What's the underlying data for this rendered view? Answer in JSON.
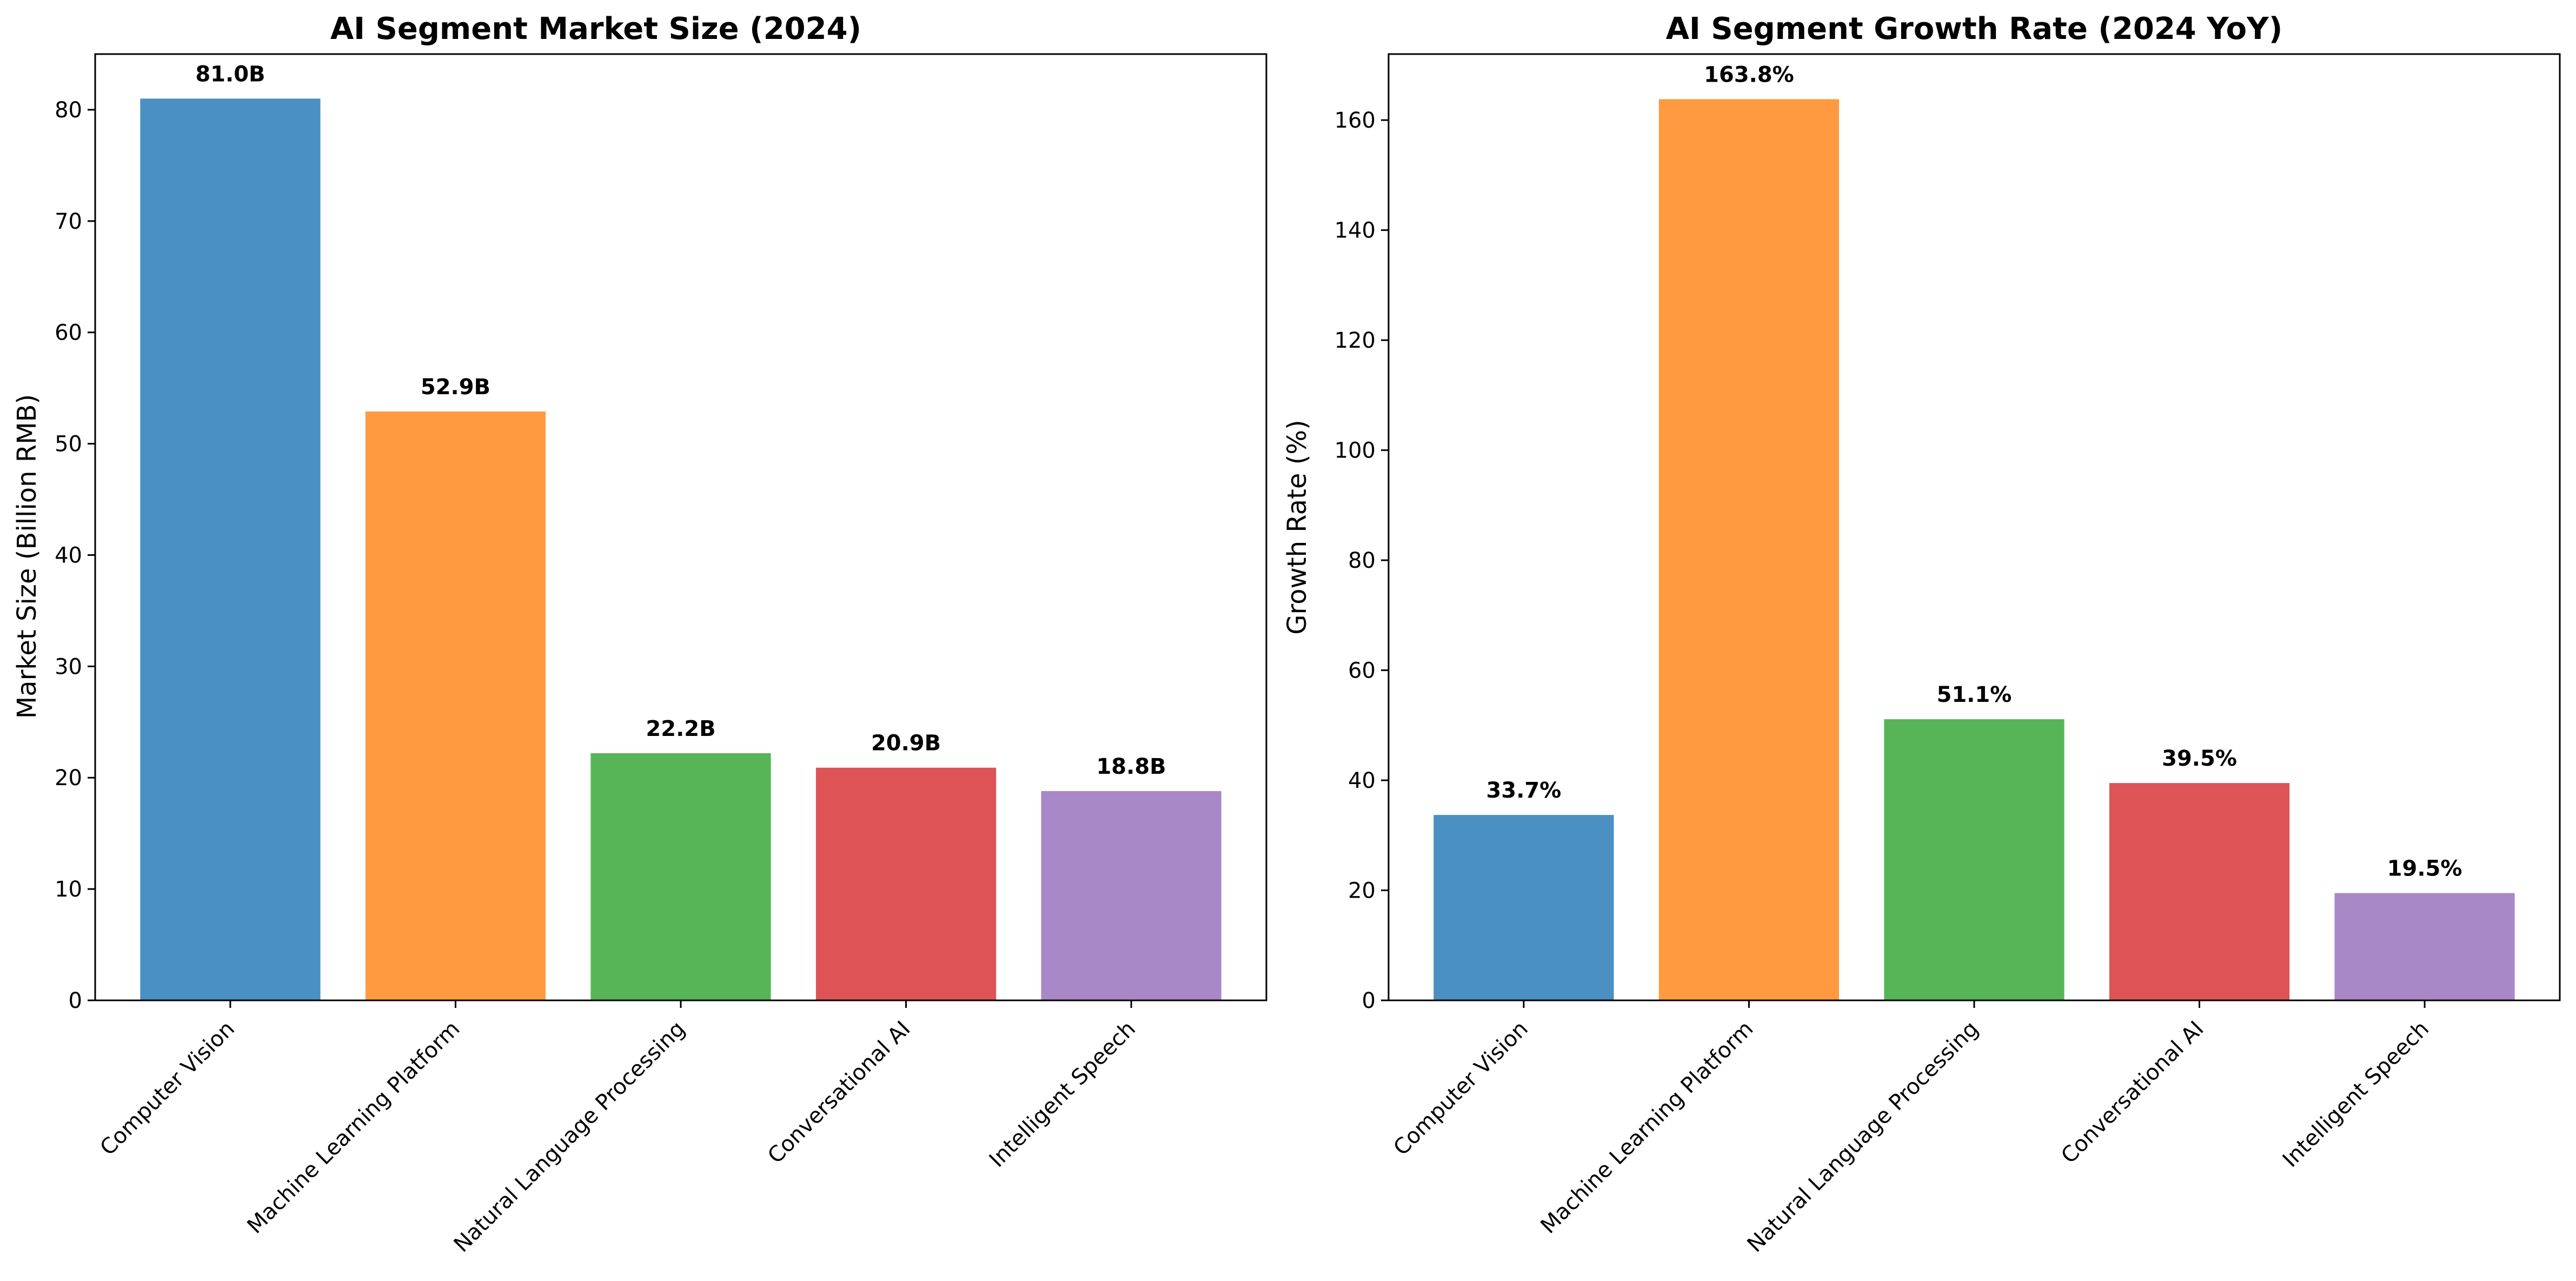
{
  "chart_data": [
    {
      "type": "bar",
      "title": "AI Segment Market Size (2024)",
      "xlabel": "",
      "ylabel": "Market Size (Billion RMB)",
      "categories": [
        "Computer Vision",
        "Machine Learning Platform",
        "Natural Language Processing",
        "Conversational AI",
        "Intelligent Speech"
      ],
      "values": [
        81.0,
        52.9,
        22.2,
        20.9,
        18.8
      ],
      "data_labels": [
        "81.0B",
        "52.9B",
        "22.2B",
        "20.9B",
        "18.8B"
      ],
      "ylim": [
        0,
        85
      ],
      "yticks": [
        0,
        10,
        20,
        30,
        40,
        50,
        60,
        70,
        80
      ],
      "grid": false,
      "colors": [
        "#4a90c2",
        "#ff9a40",
        "#57b557",
        "#dd5356",
        "#a988c8"
      ]
    },
    {
      "type": "bar",
      "title": "AI Segment Growth Rate (2024 YoY)",
      "xlabel": "",
      "ylabel": "Growth Rate (%)",
      "categories": [
        "Computer Vision",
        "Machine Learning Platform",
        "Natural Language Processing",
        "Conversational AI",
        "Intelligent Speech"
      ],
      "values": [
        33.7,
        163.8,
        51.1,
        39.5,
        19.5
      ],
      "data_labels": [
        "33.7%",
        "163.8%",
        "51.1%",
        "39.5%",
        "19.5%"
      ],
      "ylim": [
        0,
        172
      ],
      "yticks": [
        0,
        20,
        40,
        60,
        80,
        100,
        120,
        140,
        160
      ],
      "grid": false,
      "colors": [
        "#4a90c2",
        "#ff9a40",
        "#57b557",
        "#dd5356",
        "#a988c8"
      ]
    }
  ]
}
